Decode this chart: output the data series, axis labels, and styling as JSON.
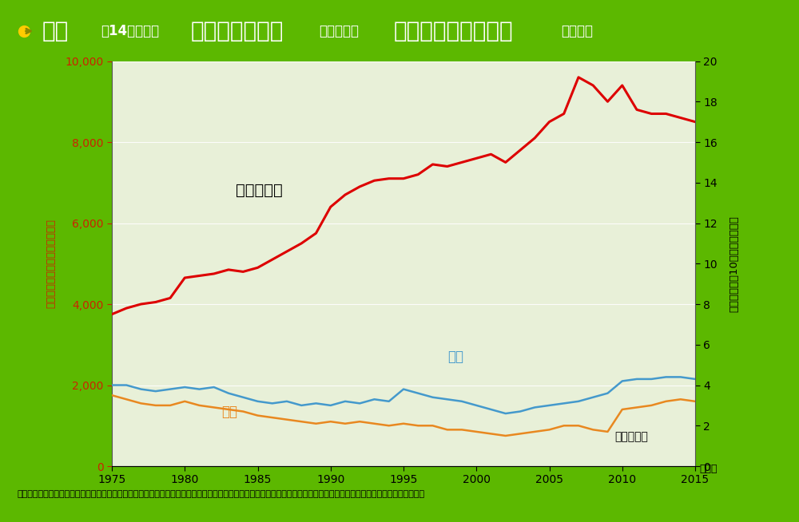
{
  "title_full": "小児（14歳以下）白血病の発生率（罹患率）と電力使用量の推移（日本）",
  "title_p1": "小児",
  "title_p2": "（14歳以下）",
  "title_p3": "白血病の発生率",
  "title_p4": "（罹患率）",
  "title_p5": "と電力使用量の推移",
  "title_p6": "（日本）",
  "ylabel_left": "電力使用量（億キロワット時）",
  "ylabel_right": "発生率（人口10万人あたり人）",
  "xlabel": "（年）",
  "source": "出典：電気事業便覧（電気事業連合会統計委員会編），国立がん研究センターがん対策情報センター「地域がん登録全国推計によるがん罹患データ」のデータを基に作成。",
  "years": [
    1975,
    1976,
    1977,
    1978,
    1979,
    1980,
    1981,
    1982,
    1983,
    1984,
    1985,
    1986,
    1987,
    1988,
    1989,
    1990,
    1991,
    1992,
    1993,
    1994,
    1995,
    1996,
    1997,
    1998,
    1999,
    2000,
    2001,
    2002,
    2003,
    2004,
    2005,
    2006,
    2007,
    2008,
    2009,
    2010,
    2011,
    2012,
    2013,
    2014,
    2015
  ],
  "electricity": [
    3750,
    3900,
    4000,
    4050,
    4150,
    4650,
    4700,
    4750,
    4850,
    4800,
    4900,
    5100,
    5300,
    5500,
    5750,
    6400,
    6700,
    6900,
    7050,
    7100,
    7100,
    7200,
    7450,
    7400,
    7500,
    7600,
    7700,
    7500,
    7800,
    8100,
    8500,
    8700,
    9600,
    9400,
    9000,
    9400,
    8800,
    8700,
    8700,
    8600,
    8500
  ],
  "boys": [
    4.0,
    4.0,
    3.8,
    3.7,
    3.8,
    3.9,
    3.8,
    3.9,
    3.6,
    3.4,
    3.2,
    3.1,
    3.2,
    3.0,
    3.1,
    3.0,
    3.2,
    3.1,
    3.3,
    3.2,
    3.8,
    3.6,
    3.4,
    3.3,
    3.2,
    3.0,
    2.8,
    2.6,
    2.7,
    2.9,
    3.0,
    3.1,
    3.2,
    3.4,
    3.6,
    4.2,
    4.3,
    4.3,
    4.4,
    4.4,
    4.3
  ],
  "girls": [
    3.5,
    3.3,
    3.1,
    3.0,
    3.0,
    3.2,
    3.0,
    2.9,
    2.8,
    2.7,
    2.5,
    2.4,
    2.3,
    2.2,
    2.1,
    2.2,
    2.1,
    2.2,
    2.1,
    2.0,
    2.1,
    2.0,
    2.0,
    1.8,
    1.8,
    1.7,
    1.6,
    1.5,
    1.6,
    1.7,
    1.8,
    2.0,
    2.0,
    1.8,
    1.7,
    2.8,
    2.9,
    3.0,
    3.2,
    3.3,
    3.2
  ],
  "bg_color": "#e8f0d8",
  "plot_bg": "#dceac8",
  "electricity_color": "#dd0000",
  "boys_color": "#4499cc",
  "girls_color": "#e88820",
  "header_bg_color": "#5cb800",
  "outer_border_color": "#5cb800",
  "white_color": "#ffffff",
  "yellow_color": "#ffdd00",
  "black_color": "#111111",
  "red_tick_color": "#cc2200",
  "label_electricity": "電力使用量",
  "label_boys": "男児",
  "label_girls": "女児",
  "label_leukemia": "小児白血病"
}
